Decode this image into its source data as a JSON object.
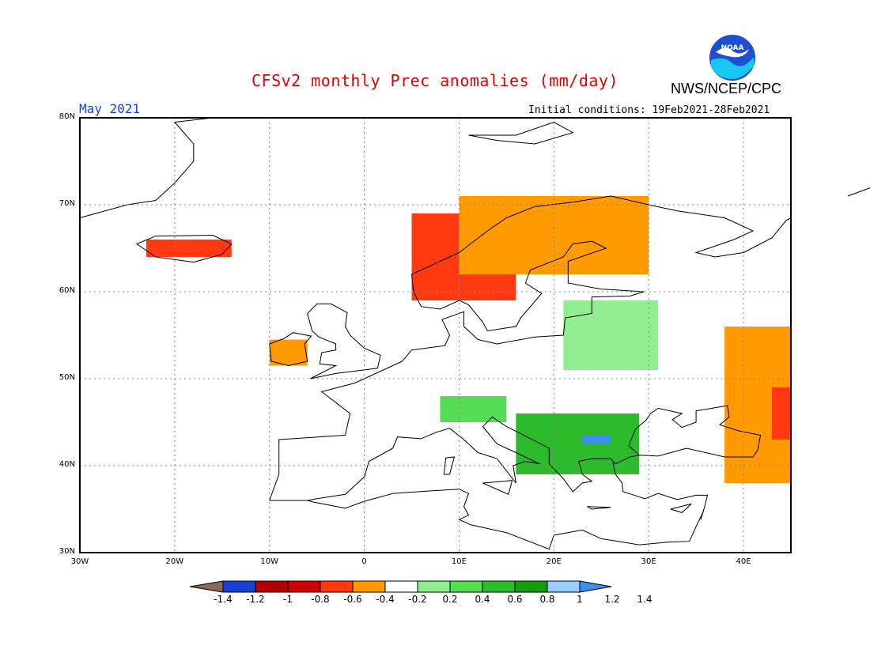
{
  "header": {
    "title": "CFSv2 monthly Prec anomalies (mm/day)",
    "org": "NWS/NCEP/CPC",
    "month": "May 2021",
    "initial_conditions": "Initial conditions: 19Feb2021-28Feb2021"
  },
  "logo_text": "NOAA",
  "axes": {
    "lat_labels": [
      "80N",
      "70N",
      "60N",
      "50N",
      "40N",
      "30N"
    ],
    "lon_labels": [
      "30W",
      "20W",
      "10W",
      "0",
      "10E",
      "20E",
      "30E",
      "40E"
    ]
  },
  "colorbar": {
    "labels": [
      "-1.4",
      "-1.2",
      "-1",
      "-0.8",
      "-0.6",
      "-0.4",
      "-0.2",
      "0.2",
      "0.4",
      "0.6",
      "0.8",
      "1",
      "1.2",
      "1.4"
    ],
    "colors": [
      "#8b6a5a",
      "#1a3fd4",
      "#b00000",
      "#cc0000",
      "#ff3a10",
      "#ff9a00",
      "#ffffff",
      "#90ee90",
      "#55dd55",
      "#2bbb2b",
      "#139b13",
      "#99ccff",
      "#3f8ff0"
    ]
  },
  "anomaly_regions": [
    {
      "name": "Norway coast",
      "lon": [
        5,
        16
      ],
      "lat": [
        59,
        69
      ],
      "value": -0.6
    },
    {
      "name": "Sweden/Finland north",
      "lon": [
        10,
        30
      ],
      "lat": [
        62,
        71
      ],
      "value": -0.4
    },
    {
      "name": "Iceland",
      "lon": [
        -23,
        -14
      ],
      "lat": [
        64,
        66
      ],
      "value": -0.6
    },
    {
      "name": "Ireland",
      "lon": [
        -10,
        -6
      ],
      "lat": [
        51.5,
        54.5
      ],
      "value": -0.4
    },
    {
      "name": "Russia east",
      "lon": [
        38,
        45
      ],
      "lat": [
        38,
        56
      ],
      "value": -0.4
    },
    {
      "name": "Caucasus",
      "lon": [
        43,
        45
      ],
      "lat": [
        43,
        49
      ],
      "value": -0.6
    },
    {
      "name": "Baltic/Belarus",
      "lon": [
        21,
        31
      ],
      "lat": [
        51,
        59
      ],
      "value": 0.2
    },
    {
      "name": "Alps",
      "lon": [
        8,
        15
      ],
      "lat": [
        45,
        48
      ],
      "value": 0.4
    },
    {
      "name": "Balkans",
      "lon": [
        16,
        29
      ],
      "lat": [
        39,
        46
      ],
      "value": 0.6
    },
    {
      "name": "Bulgaria",
      "lon": [
        23,
        26
      ],
      "lat": [
        42.5,
        43.5
      ],
      "value": 1.2
    }
  ]
}
